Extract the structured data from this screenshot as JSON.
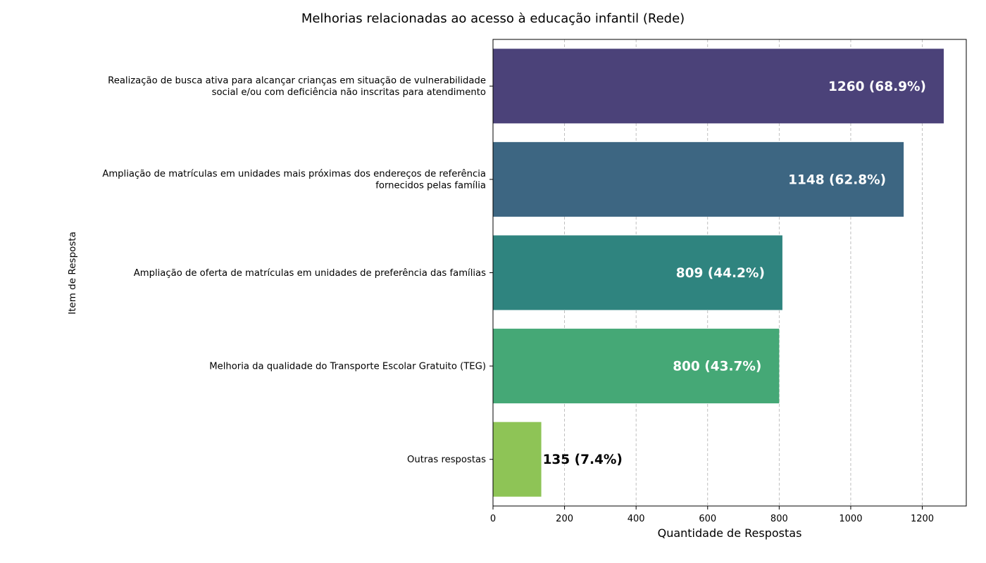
{
  "chart_data": {
    "type": "bar",
    "orientation": "horizontal",
    "title": "Melhorias relacionadas ao acesso à educação infantil (Rede)",
    "xlabel": "Quantidade de Respostas",
    "ylabel": "Item de Resposta",
    "xlim": [
      0,
      1323
    ],
    "xticks": [
      0,
      200,
      400,
      600,
      800,
      1000,
      1200
    ],
    "grid": "x-dashed",
    "categories": [
      [
        "Realização de busca ativa para alcançar crianças em situação de vulnerabilidade",
        "social e/ou com deficiência não inscritas para atendimento"
      ],
      [
        "Ampliação de matrículas em unidades mais próximas dos endereços de referência",
        "fornecidos pelas família"
      ],
      [
        "Ampliação de oferta de matrículas em unidades de preferência das famílias"
      ],
      [
        "Melhoria da qualidade do Transporte Escolar Gratuito (TEG)"
      ],
      [
        "Outras respostas"
      ]
    ],
    "values": [
      1260,
      1148,
      809,
      800,
      135
    ],
    "data_labels": [
      "1260 (68.9%)",
      "1148 (62.8%)",
      "809 (44.2%)",
      "800 (43.7%)",
      "135 (7.4%)"
    ],
    "colors": [
      "#4b4279",
      "#3d6682",
      "#2f847f",
      "#45a876",
      "#8ec456"
    ],
    "label_colors": [
      "#ffffff",
      "#ffffff",
      "#ffffff",
      "#ffffff",
      "#000000"
    ]
  }
}
